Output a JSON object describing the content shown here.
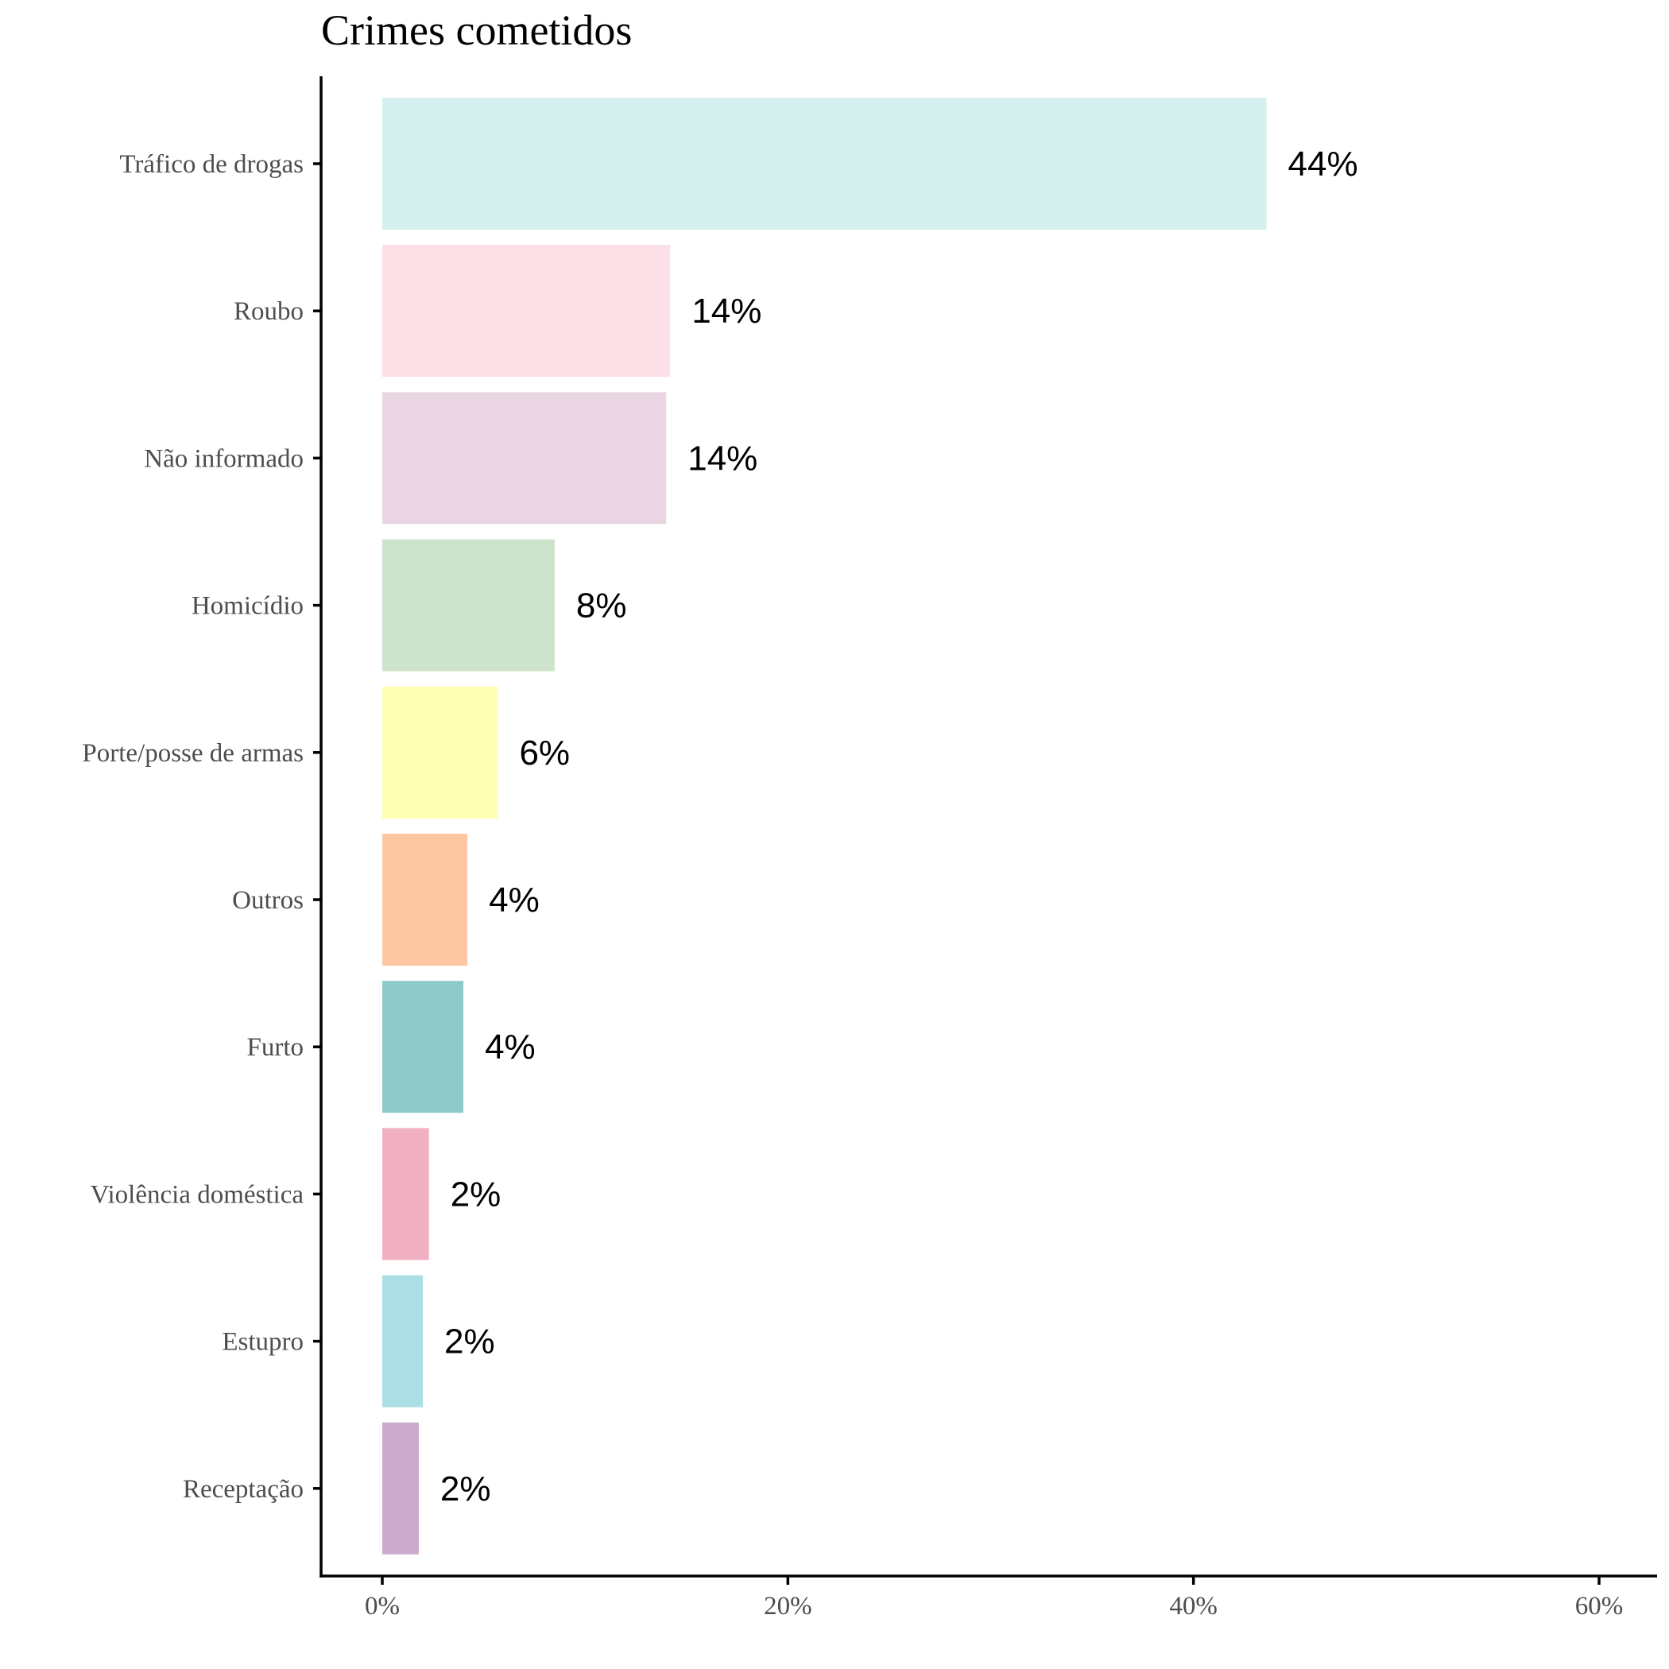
{
  "chart_data": {
    "type": "bar",
    "orientation": "horizontal",
    "title": "Crimes cometidos",
    "xlabel": "",
    "ylabel": "",
    "xlim": [
      0,
      60
    ],
    "x_ticks": [
      0,
      20,
      40,
      60
    ],
    "x_tick_labels": [
      "0%",
      "20%",
      "40%",
      "60%"
    ],
    "grid": false,
    "legend": "none",
    "categories": [
      "Tráfico de drogas",
      "Roubo",
      "Não informado",
      "Homicídio",
      "Porte/posse de armas",
      "Outros",
      "Furto",
      "Violência doméstica",
      "Estupro",
      "Receptação"
    ],
    "values": [
      43.6,
      14.2,
      14.0,
      8.5,
      5.7,
      4.2,
      4.0,
      2.3,
      2.0,
      1.8
    ],
    "data_labels": [
      "44%",
      "14%",
      "14%",
      "8%",
      "6%",
      "4%",
      "4%",
      "2%",
      "2%",
      "2%"
    ],
    "colors": [
      "#d5efef",
      "#fde0e7",
      "#e9d6e2",
      "#cee3cc",
      "#feffb3",
      "#fec7a3",
      "#90cac8",
      "#f2b1c2",
      "#acdee5",
      "#cbaccc"
    ]
  }
}
